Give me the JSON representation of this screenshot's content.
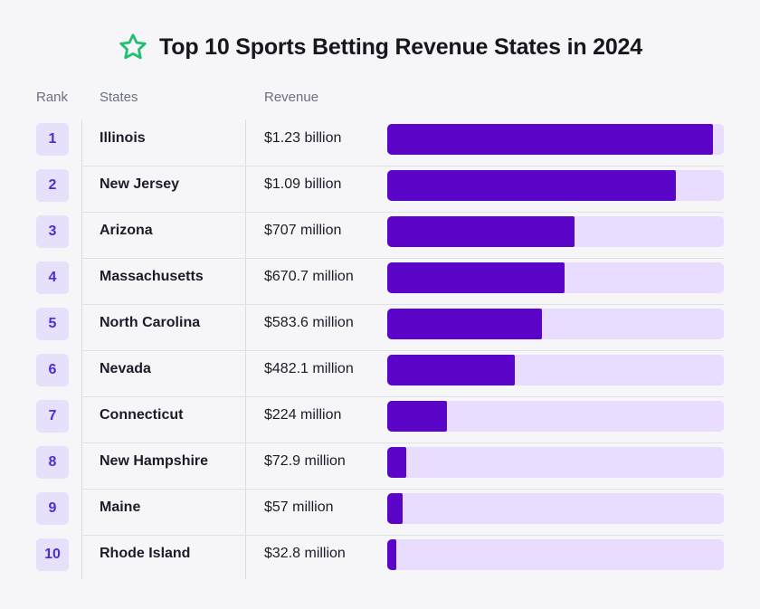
{
  "chart_data": {
    "type": "bar",
    "orientation": "horizontal",
    "title": "Top 10 Sports Betting Revenue States in 2024",
    "columns": {
      "rank": "Rank",
      "states": "States",
      "revenue": "Revenue"
    },
    "unit": "USD millions",
    "xlim": [
      0,
      1270
    ],
    "rows": [
      {
        "rank": "1",
        "state": "Illinois",
        "label": "$1.23 billion",
        "value": 1230
      },
      {
        "rank": "2",
        "state": "New Jersey",
        "label": "$1.09 billion",
        "value": 1090
      },
      {
        "rank": "3",
        "state": "Arizona",
        "label": "$707 million",
        "value": 707
      },
      {
        "rank": "4",
        "state": "Massachusetts",
        "label": "$670.7 million",
        "value": 670.7
      },
      {
        "rank": "5",
        "state": "North Carolina",
        "label": "$583.6 million",
        "value": 583.6
      },
      {
        "rank": "6",
        "state": "Nevada",
        "label": "$482.1 million",
        "value": 482.1
      },
      {
        "rank": "7",
        "state": "Connecticut",
        "label": "$224 million",
        "value": 224
      },
      {
        "rank": "8",
        "state": "New Hampshire",
        "label": "$72.9 million",
        "value": 72.9
      },
      {
        "rank": "9",
        "state": "Maine",
        "label": "$57 million",
        "value": 57
      },
      {
        "rank": "10",
        "state": "Rhode Island",
        "label": "$32.8 million",
        "value": 32.8
      }
    ],
    "colors": {
      "bar": "#5a05c8",
      "track": "#e8dcff",
      "badge": "#e6e0fb",
      "rank_text": "#4a2fd6",
      "icon": "#1fbf72"
    }
  },
  "icons": {
    "title_icon": "star-outline-icon"
  }
}
